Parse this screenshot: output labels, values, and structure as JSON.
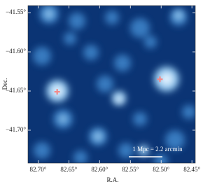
{
  "chart_data": {
    "type": "image",
    "x_label": "R.A.",
    "y_label": "Dec.",
    "xlim": [
      82.7164,
      82.4445
    ],
    "ylim": [
      -41.742,
      -41.541
    ],
    "xticks": [
      {
        "value": 82.7,
        "label": "82.70°"
      },
      {
        "value": 82.65,
        "label": "82.65°"
      },
      {
        "value": 82.6,
        "label": "82.60°"
      },
      {
        "value": 82.55,
        "label": "82.55°"
      },
      {
        "value": 82.5,
        "label": "82.50°"
      },
      {
        "value": 82.45,
        "label": "82.45°"
      }
    ],
    "yticks": [
      {
        "value": -41.55,
        "label": "−41.55°"
      },
      {
        "value": -41.6,
        "label": "−41.60°"
      },
      {
        "value": -41.65,
        "label": "−41.65°"
      },
      {
        "value": -41.7,
        "label": "−41.70°"
      }
    ],
    "points": {
      "x": [
        82.669,
        82.502
      ],
      "y": [
        -41.651,
        -41.635
      ],
      "color": "#f28a8a"
    },
    "annotation": "1 Mpc = 2.2 arcmin"
  }
}
